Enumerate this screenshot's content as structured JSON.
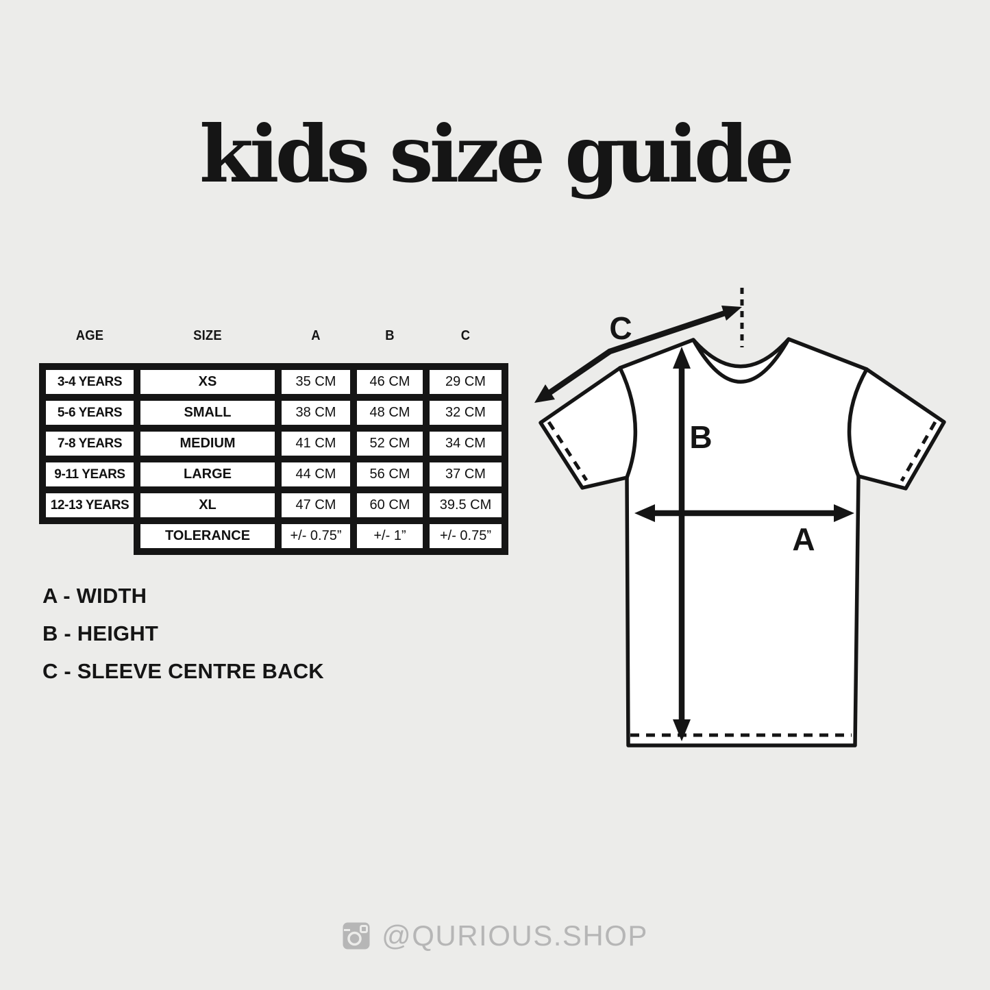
{
  "title": "kids size guide",
  "table": {
    "headers": [
      "AGE",
      "SIZE",
      "A",
      "B",
      "C"
    ],
    "rows": [
      [
        "3-4 YEARS",
        "XS",
        "35 CM",
        "46 CM",
        "29 CM"
      ],
      [
        "5-6 YEARS",
        "SMALL",
        "38 CM",
        "48 CM",
        "32 CM"
      ],
      [
        "7-8 YEARS",
        "MEDIUM",
        "41 CM",
        "52 CM",
        "34 CM"
      ],
      [
        "9-11 YEARS",
        "LARGE",
        "44 CM",
        "56 CM",
        "37 CM"
      ],
      [
        "12-13 YEARS",
        "XL",
        "47 CM",
        "60 CM",
        "39.5 CM"
      ],
      [
        "",
        "TOLERANCE",
        "+/- 0.75”",
        "+/- 1”",
        "+/- 0.75”"
      ]
    ]
  },
  "legend": [
    "A - WIDTH",
    "B - HEIGHT",
    "C - SLEEVE CENTRE BACK"
  ],
  "diagram": {
    "label_a": "A",
    "label_b": "B",
    "label_c": "C"
  },
  "footer": {
    "icon": "instagram-icon",
    "handle": "@QURIOUS.SHOP"
  },
  "colors": {
    "background": "#ECECEA",
    "ink": "#151515",
    "muted": "#B6B6B6",
    "cell": "#FFFFFF"
  }
}
